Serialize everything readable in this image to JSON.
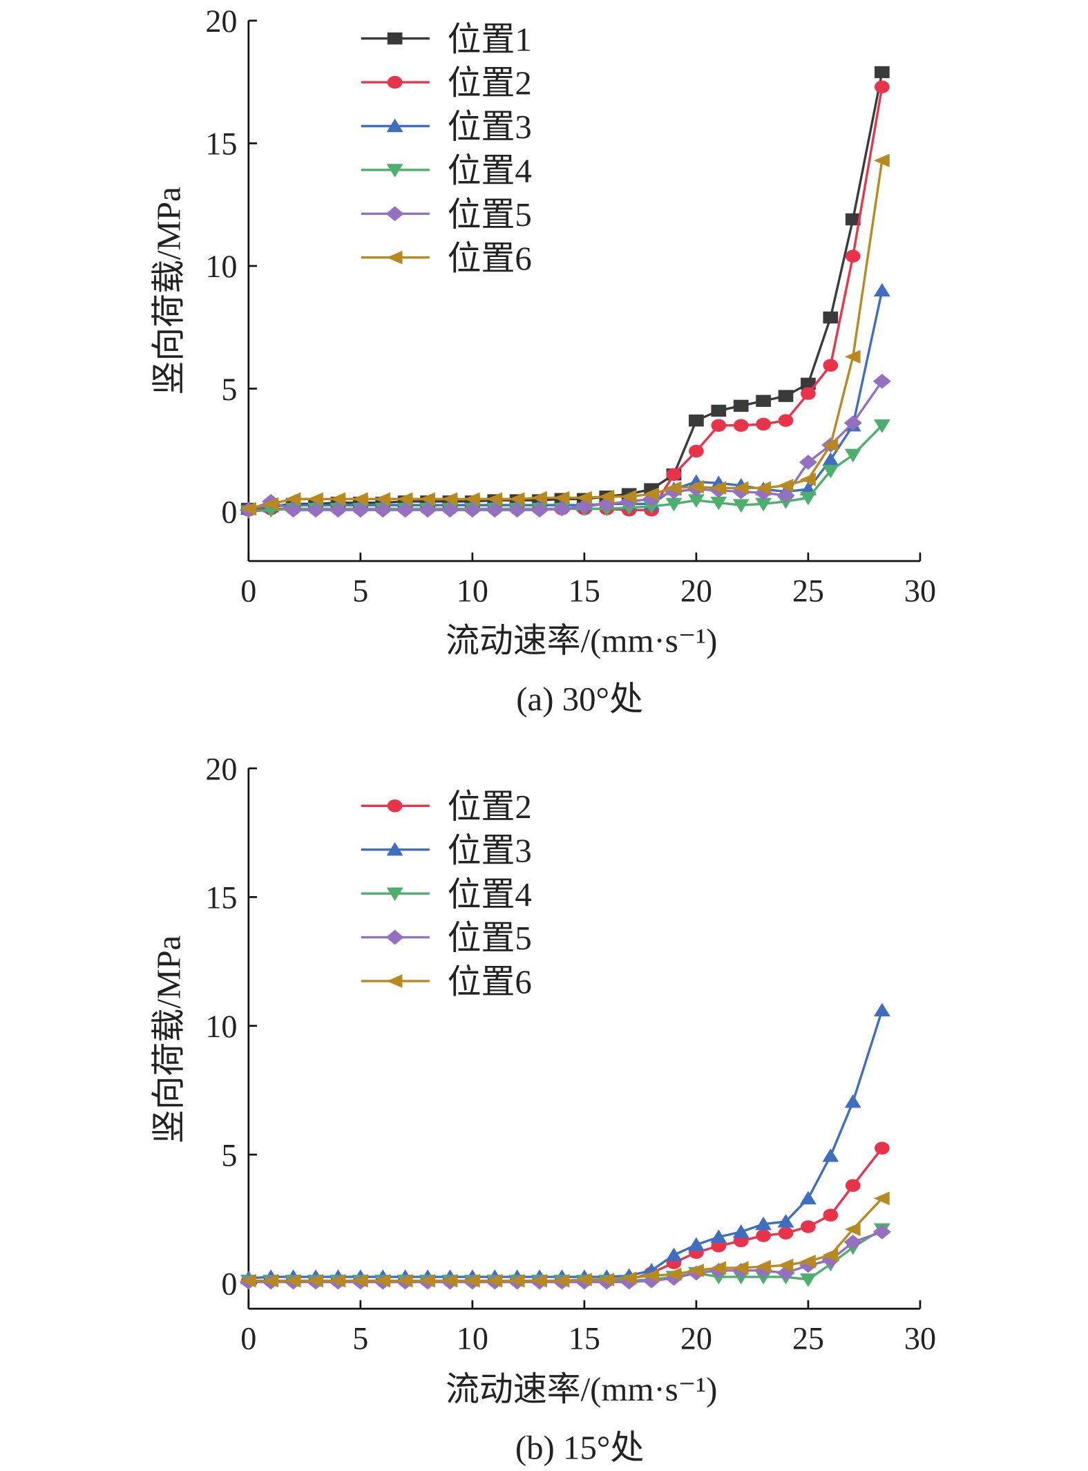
{
  "colors": {
    "位置1": "#3a3a3a",
    "位置2": "#e8334a",
    "位置3": "#3f6dbf",
    "位置4": "#4caf6c",
    "位置5": "#9370c0",
    "位置6": "#b8891f"
  },
  "markers": {
    "位置1": "square",
    "位置2": "circle",
    "位置3": "triangle-up",
    "位置4": "triangle-down",
    "位置5": "diamond",
    "位置6": "triangle-left"
  },
  "chart_data": [
    {
      "type": "line",
      "caption": "(a) 30°处",
      "xlabel": "流动速率/(mm·s⁻¹)",
      "ylabel": "竖向荷载/MPa",
      "xlim": [
        0,
        30
      ],
      "ylim": [
        -2,
        20
      ],
      "xticks": [
        0,
        5,
        10,
        15,
        20,
        25,
        30
      ],
      "yticks": [
        0,
        5,
        10,
        15,
        20
      ],
      "legend": "top-left",
      "x": [
        0,
        1,
        2,
        3,
        4,
        5,
        6,
        7,
        8,
        9,
        10,
        11,
        12,
        13,
        14,
        15,
        16,
        17,
        18,
        19,
        20,
        21,
        22,
        23,
        24,
        25,
        26,
        27,
        28.3
      ],
      "series": [
        {
          "name": "位置1",
          "values": [
            0.1,
            0.2,
            0.3,
            0.3,
            0.35,
            0.35,
            0.35,
            0.4,
            0.4,
            0.4,
            0.4,
            0.45,
            0.45,
            0.45,
            0.5,
            0.5,
            0.6,
            0.7,
            0.9,
            1.5,
            3.7,
            4.1,
            4.3,
            4.5,
            4.7,
            5.2,
            7.9,
            11.9,
            17.9
          ]
        },
        {
          "name": "位置2",
          "values": [
            0.05,
            0.1,
            0.1,
            0.1,
            0.1,
            0.1,
            0.1,
            0.1,
            0.1,
            0.1,
            0.1,
            0.1,
            0.1,
            0.1,
            0.1,
            0.1,
            0.1,
            0.05,
            0.05,
            1.5,
            2.45,
            3.5,
            3.5,
            3.55,
            3.7,
            4.8,
            5.95,
            10.4,
            17.3
          ]
        },
        {
          "name": "位置3",
          "values": [
            0.1,
            0.2,
            0.25,
            0.25,
            0.25,
            0.25,
            0.25,
            0.25,
            0.25,
            0.25,
            0.25,
            0.25,
            0.25,
            0.25,
            0.25,
            0.25,
            0.3,
            0.3,
            0.3,
            0.9,
            1.2,
            1.15,
            1.05,
            0.9,
            0.8,
            0.9,
            2.1,
            3.5,
            9.0
          ]
        },
        {
          "name": "位置4",
          "values": [
            0.0,
            0.05,
            0.1,
            0.1,
            0.1,
            0.1,
            0.1,
            0.1,
            0.1,
            0.1,
            0.1,
            0.1,
            0.1,
            0.1,
            0.1,
            0.1,
            0.1,
            0.15,
            0.2,
            0.3,
            0.45,
            0.35,
            0.25,
            0.3,
            0.4,
            0.55,
            1.65,
            2.3,
            3.5
          ]
        },
        {
          "name": "位置5",
          "values": [
            0.05,
            0.4,
            0.05,
            0.05,
            0.05,
            0.05,
            0.05,
            0.05,
            0.05,
            0.05,
            0.05,
            0.05,
            0.05,
            0.05,
            0.1,
            0.2,
            0.3,
            0.4,
            0.5,
            0.8,
            0.9,
            0.85,
            0.8,
            0.75,
            0.65,
            2.0,
            2.7,
            3.6,
            5.3
          ]
        },
        {
          "name": "位置6",
          "values": [
            0.1,
            0.3,
            0.5,
            0.5,
            0.5,
            0.5,
            0.5,
            0.5,
            0.5,
            0.5,
            0.5,
            0.5,
            0.5,
            0.55,
            0.55,
            0.55,
            0.6,
            0.6,
            0.7,
            0.95,
            1.0,
            0.95,
            0.95,
            0.95,
            1.05,
            1.3,
            2.7,
            6.3,
            14.3
          ]
        }
      ]
    },
    {
      "type": "line",
      "caption": "(b) 15°处",
      "xlabel": "流动速率/(mm·s⁻¹)",
      "ylabel": "竖向荷载/MPa",
      "xlim": [
        0,
        30
      ],
      "ylim": [
        -1,
        20
      ],
      "xticks": [
        0,
        5,
        10,
        15,
        20,
        25,
        30
      ],
      "yticks": [
        0,
        5,
        10,
        15,
        20
      ],
      "legend": "top-left",
      "x": [
        0,
        1,
        2,
        3,
        4,
        5,
        6,
        7,
        8,
        9,
        10,
        11,
        12,
        13,
        14,
        15,
        16,
        17,
        18,
        19,
        20,
        21,
        22,
        23,
        24,
        25,
        26,
        27,
        28.3
      ],
      "series": [
        {
          "name": "位置2",
          "values": [
            0.1,
            0.1,
            0.1,
            0.1,
            0.1,
            0.1,
            0.1,
            0.1,
            0.1,
            0.1,
            0.1,
            0.1,
            0.1,
            0.1,
            0.1,
            0.1,
            0.1,
            0.15,
            0.4,
            0.8,
            1.2,
            1.45,
            1.65,
            1.85,
            1.95,
            2.2,
            2.65,
            3.8,
            5.25
          ]
        },
        {
          "name": "位置3",
          "values": [
            0.2,
            0.25,
            0.25,
            0.25,
            0.25,
            0.25,
            0.25,
            0.25,
            0.25,
            0.25,
            0.25,
            0.25,
            0.25,
            0.25,
            0.25,
            0.25,
            0.25,
            0.3,
            0.5,
            1.1,
            1.5,
            1.8,
            2.0,
            2.3,
            2.4,
            3.3,
            4.95,
            7.05,
            10.6
          ]
        },
        {
          "name": "位置4",
          "values": [
            0.1,
            0.1,
            0.1,
            0.1,
            0.1,
            0.1,
            0.1,
            0.1,
            0.1,
            0.1,
            0.1,
            0.1,
            0.1,
            0.1,
            0.1,
            0.1,
            0.1,
            0.1,
            0.15,
            0.25,
            0.4,
            0.25,
            0.25,
            0.25,
            0.25,
            0.15,
            0.75,
            1.4,
            2.1
          ]
        },
        {
          "name": "位置5",
          "values": [
            0.05,
            0.05,
            0.05,
            0.05,
            0.05,
            0.05,
            0.05,
            0.05,
            0.05,
            0.05,
            0.05,
            0.05,
            0.05,
            0.05,
            0.05,
            0.05,
            0.05,
            0.05,
            0.1,
            0.2,
            0.4,
            0.5,
            0.5,
            0.5,
            0.4,
            0.7,
            0.9,
            1.6,
            2.0
          ]
        },
        {
          "name": "位置6",
          "values": [
            0.1,
            0.1,
            0.1,
            0.1,
            0.1,
            0.1,
            0.1,
            0.1,
            0.1,
            0.1,
            0.1,
            0.1,
            0.1,
            0.1,
            0.1,
            0.15,
            0.15,
            0.2,
            0.3,
            0.35,
            0.5,
            0.6,
            0.6,
            0.65,
            0.7,
            0.85,
            1.1,
            2.1,
            3.3
          ]
        }
      ]
    }
  ]
}
